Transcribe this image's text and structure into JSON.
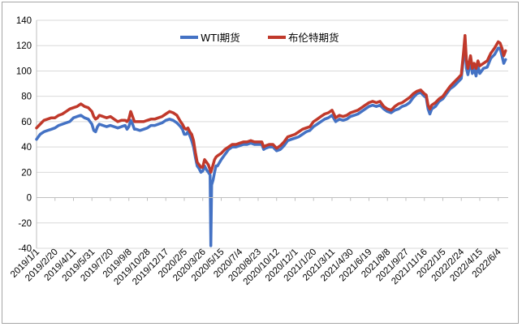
{
  "chart_data": {
    "type": "line",
    "title": "",
    "xlabel": "",
    "ylabel": "",
    "ylim": [
      -40,
      140
    ],
    "yticks": [
      -40,
      -20,
      0,
      20,
      40,
      60,
      80,
      100,
      120,
      140
    ],
    "grid": "horizontal",
    "legend_position": "top-center",
    "x_tick_labels": [
      "2019/1/1",
      "2019/2/20",
      "2019/4/11",
      "2019/5/31",
      "2019/7/20",
      "2019/9/8",
      "2019/10/28",
      "2019/12/17",
      "2020/2/5",
      "2020/3/26",
      "2020/5/15",
      "2020/7/4",
      "2020/8/23",
      "2020/10/12",
      "2020/12/1",
      "2021/1/20",
      "2021/3/11",
      "2021/4/30",
      "2021/6/19",
      "2021/8/8",
      "2021/9/27",
      "2021/11/16",
      "2022/1/5",
      "2022/2/24",
      "2022/4/15",
      "2022/6/4"
    ],
    "x_tick_days": [
      0,
      50,
      100,
      150,
      200,
      250,
      300,
      350,
      400,
      450,
      500,
      550,
      600,
      650,
      700,
      750,
      800,
      850,
      900,
      950,
      1000,
      1050,
      1100,
      1150,
      1200,
      1250
    ],
    "x_domain_days": [
      0,
      1277
    ],
    "series": [
      {
        "name": "WTI期货",
        "color": "#4472c4",
        "points": [
          [
            0,
            46
          ],
          [
            10,
            50
          ],
          [
            20,
            52
          ],
          [
            30,
            53
          ],
          [
            40,
            54
          ],
          [
            50,
            55
          ],
          [
            60,
            57
          ],
          [
            70,
            58
          ],
          [
            80,
            59
          ],
          [
            90,
            60
          ],
          [
            100,
            63
          ],
          [
            110,
            64
          ],
          [
            120,
            65
          ],
          [
            130,
            63
          ],
          [
            140,
            62
          ],
          [
            150,
            58
          ],
          [
            155,
            53
          ],
          [
            160,
            52
          ],
          [
            165,
            56
          ],
          [
            170,
            58
          ],
          [
            180,
            57
          ],
          [
            190,
            56
          ],
          [
            200,
            57
          ],
          [
            210,
            56
          ],
          [
            220,
            55
          ],
          [
            230,
            56
          ],
          [
            240,
            57
          ],
          [
            245,
            54
          ],
          [
            250,
            56
          ],
          [
            255,
            61
          ],
          [
            260,
            58
          ],
          [
            265,
            54
          ],
          [
            270,
            54
          ],
          [
            280,
            53
          ],
          [
            290,
            54
          ],
          [
            300,
            55
          ],
          [
            310,
            57
          ],
          [
            320,
            57
          ],
          [
            330,
            58
          ],
          [
            340,
            59
          ],
          [
            350,
            61
          ],
          [
            360,
            62
          ],
          [
            370,
            61
          ],
          [
            380,
            59
          ],
          [
            390,
            56
          ],
          [
            395,
            54
          ],
          [
            400,
            50
          ],
          [
            405,
            50
          ],
          [
            410,
            52
          ],
          [
            415,
            49
          ],
          [
            420,
            45
          ],
          [
            425,
            40
          ],
          [
            430,
            32
          ],
          [
            435,
            25
          ],
          [
            440,
            23
          ],
          [
            445,
            20
          ],
          [
            450,
            21
          ],
          [
            455,
            25
          ],
          [
            460,
            22
          ],
          [
            465,
            20
          ],
          [
            470,
            18
          ],
          [
            472,
            -38
          ],
          [
            474,
            10
          ],
          [
            478,
            14
          ],
          [
            482,
            20
          ],
          [
            486,
            25
          ],
          [
            490,
            25
          ],
          [
            500,
            30
          ],
          [
            510,
            34
          ],
          [
            520,
            38
          ],
          [
            530,
            40
          ],
          [
            540,
            40
          ],
          [
            550,
            41
          ],
          [
            560,
            42
          ],
          [
            570,
            42
          ],
          [
            580,
            43
          ],
          [
            590,
            42
          ],
          [
            600,
            42
          ],
          [
            610,
            42
          ],
          [
            615,
            38
          ],
          [
            620,
            39
          ],
          [
            630,
            40
          ],
          [
            640,
            40
          ],
          [
            650,
            37
          ],
          [
            660,
            38
          ],
          [
            670,
            41
          ],
          [
            680,
            45
          ],
          [
            690,
            46
          ],
          [
            700,
            47
          ],
          [
            710,
            48
          ],
          [
            720,
            50
          ],
          [
            730,
            52
          ],
          [
            740,
            53
          ],
          [
            750,
            56
          ],
          [
            760,
            58
          ],
          [
            770,
            60
          ],
          [
            780,
            62
          ],
          [
            790,
            63
          ],
          [
            800,
            65
          ],
          [
            810,
            60
          ],
          [
            820,
            62
          ],
          [
            830,
            61
          ],
          [
            840,
            62
          ],
          [
            850,
            64
          ],
          [
            860,
            65
          ],
          [
            870,
            66
          ],
          [
            880,
            68
          ],
          [
            890,
            70
          ],
          [
            900,
            72
          ],
          [
            910,
            73
          ],
          [
            920,
            72
          ],
          [
            930,
            73
          ],
          [
            940,
            70
          ],
          [
            950,
            68
          ],
          [
            960,
            67
          ],
          [
            970,
            69
          ],
          [
            980,
            70
          ],
          [
            990,
            72
          ],
          [
            1000,
            73
          ],
          [
            1010,
            75
          ],
          [
            1020,
            79
          ],
          [
            1030,
            82
          ],
          [
            1040,
            83
          ],
          [
            1050,
            80
          ],
          [
            1055,
            79
          ],
          [
            1060,
            70
          ],
          [
            1065,
            66
          ],
          [
            1070,
            70
          ],
          [
            1080,
            72
          ],
          [
            1090,
            76
          ],
          [
            1100,
            78
          ],
          [
            1110,
            82
          ],
          [
            1120,
            86
          ],
          [
            1130,
            88
          ],
          [
            1140,
            91
          ],
          [
            1150,
            94
          ],
          [
            1156,
            110
          ],
          [
            1160,
            124
          ],
          [
            1164,
            102
          ],
          [
            1168,
            97
          ],
          [
            1175,
            108
          ],
          [
            1180,
            98
          ],
          [
            1185,
            102
          ],
          [
            1190,
            96
          ],
          [
            1195,
            104
          ],
          [
            1200,
            98
          ],
          [
            1210,
            102
          ],
          [
            1220,
            103
          ],
          [
            1230,
            110
          ],
          [
            1240,
            113
          ],
          [
            1250,
            118
          ],
          [
            1255,
            118
          ],
          [
            1260,
            112
          ],
          [
            1265,
            106
          ],
          [
            1270,
            109
          ]
        ]
      },
      {
        "name": "布伦特期货",
        "color": "#c0392b",
        "points": [
          [
            0,
            55
          ],
          [
            10,
            58
          ],
          [
            20,
            61
          ],
          [
            30,
            62
          ],
          [
            40,
            63
          ],
          [
            50,
            63
          ],
          [
            60,
            65
          ],
          [
            70,
            66
          ],
          [
            80,
            68
          ],
          [
            90,
            70
          ],
          [
            100,
            71
          ],
          [
            110,
            72
          ],
          [
            120,
            74
          ],
          [
            130,
            72
          ],
          [
            140,
            71
          ],
          [
            150,
            68
          ],
          [
            155,
            64
          ],
          [
            160,
            62
          ],
          [
            165,
            63
          ],
          [
            170,
            65
          ],
          [
            180,
            64
          ],
          [
            190,
            63
          ],
          [
            200,
            64
          ],
          [
            210,
            62
          ],
          [
            220,
            60
          ],
          [
            230,
            61
          ],
          [
            240,
            61
          ],
          [
            245,
            60
          ],
          [
            250,
            62
          ],
          [
            255,
            68
          ],
          [
            260,
            64
          ],
          [
            265,
            60
          ],
          [
            270,
            60
          ],
          [
            280,
            60
          ],
          [
            290,
            60
          ],
          [
            300,
            61
          ],
          [
            310,
            62
          ],
          [
            320,
            62
          ],
          [
            330,
            63
          ],
          [
            340,
            64
          ],
          [
            350,
            66
          ],
          [
            360,
            68
          ],
          [
            370,
            67
          ],
          [
            380,
            65
          ],
          [
            390,
            60
          ],
          [
            395,
            58
          ],
          [
            400,
            55
          ],
          [
            405,
            54
          ],
          [
            410,
            55
          ],
          [
            415,
            52
          ],
          [
            420,
            50
          ],
          [
            425,
            45
          ],
          [
            430,
            36
          ],
          [
            435,
            28
          ],
          [
            440,
            26
          ],
          [
            445,
            24
          ],
          [
            450,
            24
          ],
          [
            455,
            30
          ],
          [
            460,
            28
          ],
          [
            465,
            26
          ],
          [
            470,
            22
          ],
          [
            472,
            20
          ],
          [
            474,
            22
          ],
          [
            478,
            26
          ],
          [
            482,
            30
          ],
          [
            486,
            32
          ],
          [
            490,
            33
          ],
          [
            500,
            35
          ],
          [
            510,
            38
          ],
          [
            520,
            40
          ],
          [
            530,
            42
          ],
          [
            540,
            42
          ],
          [
            550,
            43
          ],
          [
            560,
            44
          ],
          [
            570,
            44
          ],
          [
            580,
            45
          ],
          [
            590,
            44
          ],
          [
            600,
            44
          ],
          [
            610,
            44
          ],
          [
            615,
            40
          ],
          [
            620,
            41
          ],
          [
            630,
            42
          ],
          [
            640,
            42
          ],
          [
            650,
            39
          ],
          [
            660,
            41
          ],
          [
            670,
            44
          ],
          [
            680,
            48
          ],
          [
            690,
            49
          ],
          [
            700,
            50
          ],
          [
            710,
            52
          ],
          [
            720,
            54
          ],
          [
            730,
            55
          ],
          [
            740,
            56
          ],
          [
            750,
            60
          ],
          [
            760,
            62
          ],
          [
            770,
            64
          ],
          [
            780,
            66
          ],
          [
            790,
            67
          ],
          [
            800,
            69
          ],
          [
            810,
            63
          ],
          [
            820,
            65
          ],
          [
            830,
            64
          ],
          [
            840,
            65
          ],
          [
            850,
            67
          ],
          [
            860,
            68
          ],
          [
            870,
            69
          ],
          [
            880,
            71
          ],
          [
            890,
            73
          ],
          [
            900,
            75
          ],
          [
            910,
            76
          ],
          [
            920,
            75
          ],
          [
            930,
            76
          ],
          [
            940,
            72
          ],
          [
            950,
            70
          ],
          [
            960,
            69
          ],
          [
            970,
            72
          ],
          [
            980,
            74
          ],
          [
            990,
            75
          ],
          [
            1000,
            77
          ],
          [
            1010,
            79
          ],
          [
            1020,
            82
          ],
          [
            1030,
            84
          ],
          [
            1040,
            85
          ],
          [
            1050,
            82
          ],
          [
            1055,
            81
          ],
          [
            1060,
            73
          ],
          [
            1065,
            70
          ],
          [
            1070,
            73
          ],
          [
            1080,
            75
          ],
          [
            1090,
            78
          ],
          [
            1100,
            80
          ],
          [
            1110,
            84
          ],
          [
            1120,
            88
          ],
          [
            1130,
            91
          ],
          [
            1140,
            94
          ],
          [
            1150,
            97
          ],
          [
            1156,
            114
          ],
          [
            1160,
            128
          ],
          [
            1164,
            108
          ],
          [
            1168,
            102
          ],
          [
            1175,
            112
          ],
          [
            1180,
            102
          ],
          [
            1185,
            106
          ],
          [
            1190,
            102
          ],
          [
            1195,
            108
          ],
          [
            1200,
            104
          ],
          [
            1210,
            106
          ],
          [
            1220,
            108
          ],
          [
            1230,
            114
          ],
          [
            1240,
            118
          ],
          [
            1250,
            123
          ],
          [
            1255,
            122
          ],
          [
            1260,
            118
          ],
          [
            1265,
            112
          ],
          [
            1270,
            116
          ]
        ]
      }
    ]
  }
}
